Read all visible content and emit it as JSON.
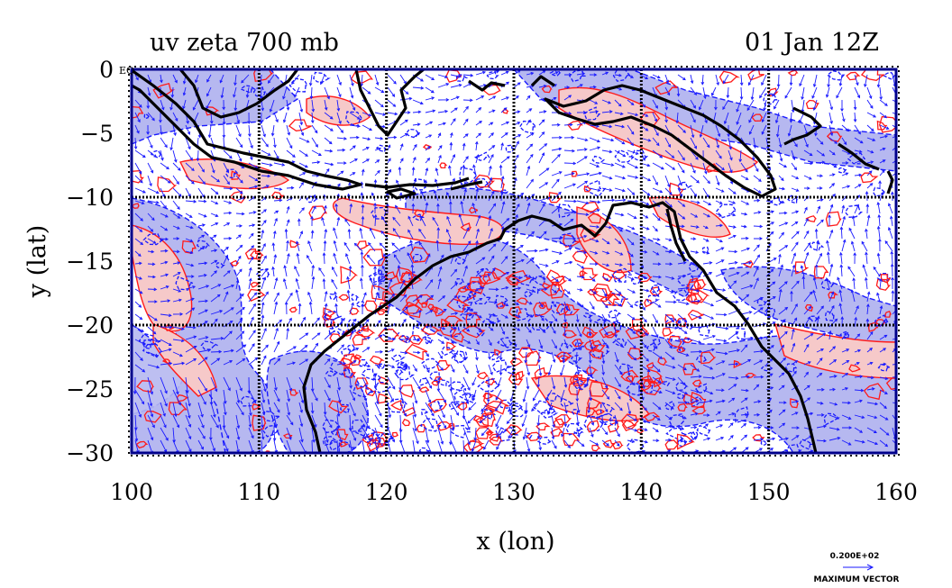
{
  "header": {
    "title_left": "uv zeta 700 mb",
    "title_right": "01 Jan 12Z"
  },
  "axes": {
    "xlabel": "x (lon)",
    "ylabel": "y (lat)",
    "xticks": [
      "100",
      "110",
      "120",
      "130",
      "140",
      "150",
      "160"
    ],
    "yticks": [
      "0",
      "−5",
      "−10",
      "−15",
      "−20",
      "−25",
      "−30"
    ],
    "y_corner_tag": "EQ",
    "xlim": [
      100,
      160
    ],
    "ylim": [
      -30,
      0
    ]
  },
  "grid_lines": {
    "lon": [
      110,
      120,
      130,
      140,
      150
    ],
    "lat": [
      -10,
      -20
    ]
  },
  "legend": {
    "vector_value": "0.200E+02",
    "vector_label": "MAXIMUM VECTOR"
  },
  "colors": {
    "positive_vorticity_fill": "#f6c9c9",
    "positive_vorticity_line": "#ff1a1a",
    "negative_vorticity_fill": "#b6b8f0",
    "negative_vorticity_line": "#1a1aff",
    "wind_vectors": "#1a1aff",
    "coastline": "#000000"
  }
}
